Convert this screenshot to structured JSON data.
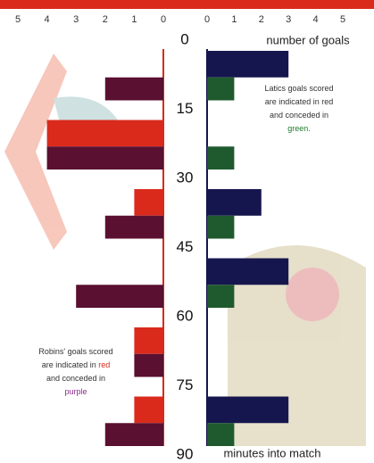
{
  "chart_data": {
    "type": "butterfly_bar",
    "x_label": "number of goals",
    "y_label": "minutes into match",
    "left_axis": {
      "xlim": [
        5,
        0
      ],
      "xticks": [
        5,
        4,
        3,
        2,
        1,
        0
      ]
    },
    "right_axis": {
      "xlim": [
        0,
        5
      ],
      "xticks": [
        0,
        1,
        2,
        3,
        4,
        5
      ]
    },
    "ylim": [
      0,
      90
    ],
    "yticks": [
      0,
      15,
      30,
      45,
      60,
      75,
      90
    ],
    "series": [
      {
        "side": "left",
        "row": "upper",
        "color": "#d92a1c",
        "values": [
          0,
          4,
          1,
          0,
          1,
          1
        ]
      },
      {
        "side": "left",
        "row": "lower",
        "color": "#5a1030",
        "values": [
          2,
          4,
          2,
          3,
          1,
          2
        ]
      },
      {
        "side": "right",
        "row": "upper",
        "color": "#16164e",
        "values": [
          3,
          0,
          2,
          3,
          0,
          3
        ]
      },
      {
        "side": "right",
        "row": "lower",
        "color": "#1f5a2e",
        "values": [
          1,
          1,
          1,
          1,
          0,
          1
        ]
      }
    ],
    "left_note": [
      [
        "Robins' goals scored"
      ],
      [
        "are indicated in ",
        "red"
      ],
      [
        "and conceded in"
      ],
      [
        "purple"
      ]
    ],
    "right_note": [
      [
        "Latics goals scored"
      ],
      [
        "are indicated in red"
      ],
      [
        "and conceded in"
      ],
      [
        "green."
      ]
    ]
  }
}
